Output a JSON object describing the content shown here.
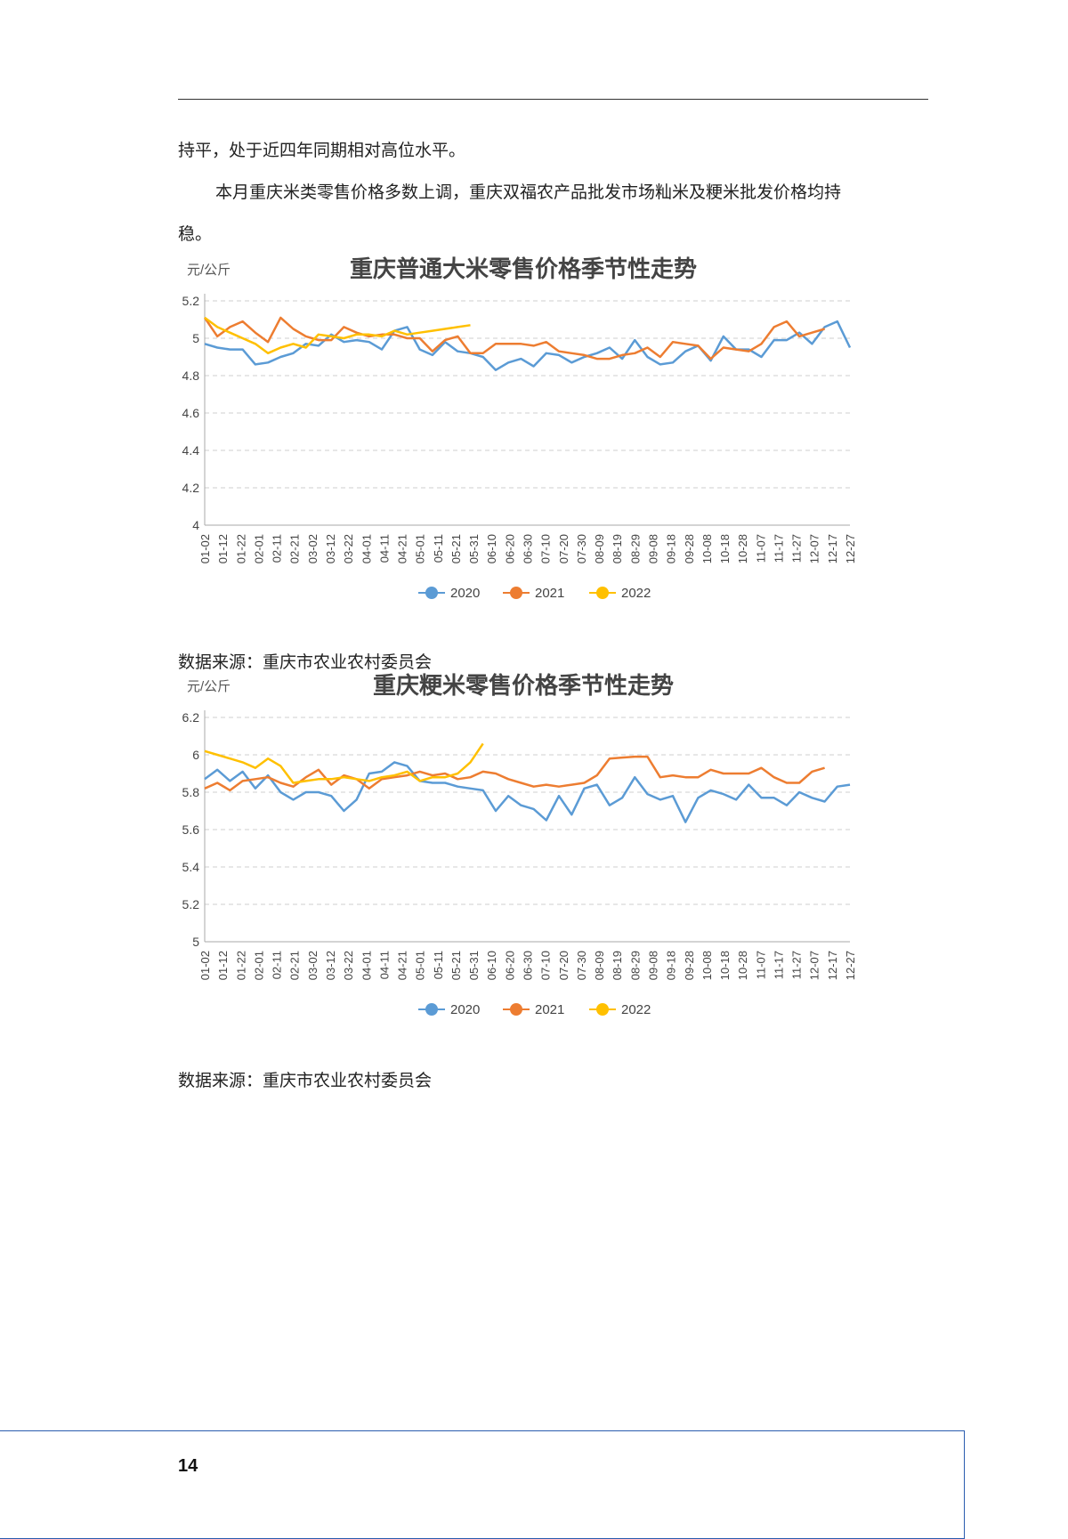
{
  "body": {
    "line1": "持平，处于近四年同期相对高位水平。",
    "line2": "本月重庆米类零售价格多数上调，重庆双福农产品批发市场籼米及粳米批发价格均持",
    "line3": "稳。"
  },
  "sources": [
    "数据来源：重庆市农业农村委员会",
    "数据来源：重庆市农业农村委员会"
  ],
  "page_number": "14",
  "colors": {
    "2020": "#5b9bd5",
    "2021": "#ed7d31",
    "2022": "#ffc000"
  },
  "chart_data": [
    {
      "type": "line",
      "title": "重庆普通大米零售价格季节性走势",
      "unit": "元/公斤",
      "ylim": [
        4,
        5.2
      ],
      "yticks": [
        "5.2",
        "5",
        "4.8",
        "4.6",
        "4.4",
        "4.2",
        "4"
      ],
      "grid": true,
      "legend": "bottom",
      "x_labels": [
        "01-02",
        "01-12",
        "01-22",
        "02-01",
        "02-11",
        "02-21",
        "03-02",
        "03-12",
        "03-22",
        "04-01",
        "04-11",
        "04-21",
        "05-01",
        "05-11",
        "05-21",
        "05-31",
        "06-10",
        "06-20",
        "06-30",
        "07-10",
        "07-20",
        "07-30",
        "08-09",
        "08-19",
        "08-29",
        "09-08",
        "09-18",
        "09-28",
        "10-08",
        "10-18",
        "10-28",
        "11-07",
        "11-17",
        "11-27",
        "12-07",
        "12-17",
        "12-27"
      ],
      "series": [
        {
          "name": "2020",
          "values": [
            4.97,
            4.95,
            4.94,
            4.94,
            4.86,
            4.87,
            4.9,
            4.92,
            4.97,
            4.96,
            5.02,
            4.98,
            4.99,
            4.98,
            4.94,
            5.04,
            5.06,
            4.94,
            4.91,
            4.98,
            4.93,
            4.92,
            4.9,
            4.83,
            4.87,
            4.89,
            4.85,
            4.92,
            4.91,
            4.87,
            4.9,
            4.92,
            4.95,
            4.89,
            4.99,
            4.9,
            4.86,
            4.87,
            4.93,
            4.96,
            4.88,
            5.01,
            4.94,
            4.94,
            4.9,
            4.99,
            4.99,
            5.03,
            4.97,
            5.06,
            5.09,
            4.95
          ]
        },
        {
          "name": "2021",
          "values": [
            5.11,
            5.01,
            5.06,
            5.09,
            5.03,
            4.98,
            5.11,
            5.05,
            5.01,
            4.99,
            4.99,
            5.06,
            5.03,
            5.01,
            5.02,
            5.02,
            5.0,
            5.0,
            4.93,
            4.99,
            5.01,
            4.92,
            4.92,
            4.97,
            4.97,
            4.97,
            4.96,
            4.98,
            4.93,
            4.92,
            4.91,
            4.89,
            4.89,
            4.91,
            4.92,
            4.95,
            4.9,
            4.98,
            4.97,
            4.96,
            4.89,
            4.95,
            4.94,
            4.93,
            4.97,
            5.06,
            5.09,
            5.01,
            5.03,
            5.05
          ]
        },
        {
          "name": "2022",
          "values": [
            5.11,
            5.06,
            5.03,
            5.0,
            4.97,
            4.92,
            4.95,
            4.97,
            4.95,
            5.02,
            5.01,
            5.0,
            5.02,
            5.02,
            5.01,
            5.04,
            5.02,
            5.03,
            5.04,
            5.05,
            5.06,
            5.07
          ]
        }
      ]
    },
    {
      "type": "line",
      "title": "重庆粳米零售价格季节性走势",
      "unit": "元/公斤",
      "ylim": [
        5,
        6.2
      ],
      "yticks": [
        "6.2",
        "6",
        "5.8",
        "5.6",
        "5.4",
        "5.2",
        "5"
      ],
      "grid": true,
      "legend": "bottom",
      "x_labels": [
        "01-02",
        "01-12",
        "01-22",
        "02-01",
        "02-11",
        "02-21",
        "03-02",
        "03-12",
        "03-22",
        "04-01",
        "04-11",
        "04-21",
        "05-01",
        "05-11",
        "05-21",
        "05-31",
        "06-10",
        "06-20",
        "06-30",
        "07-10",
        "07-20",
        "07-30",
        "08-09",
        "08-19",
        "08-29",
        "09-08",
        "09-18",
        "09-28",
        "10-08",
        "10-18",
        "10-28",
        "11-07",
        "11-17",
        "11-27",
        "12-07",
        "12-17",
        "12-27"
      ],
      "series": [
        {
          "name": "2020",
          "values": [
            5.87,
            5.92,
            5.86,
            5.91,
            5.82,
            5.89,
            5.8,
            5.76,
            5.8,
            5.8,
            5.78,
            5.7,
            5.76,
            5.9,
            5.91,
            5.96,
            5.94,
            5.86,
            5.85,
            5.85,
            5.83,
            5.82,
            5.81,
            5.7,
            5.78,
            5.73,
            5.71,
            5.65,
            5.78,
            5.68,
            5.82,
            5.84,
            5.73,
            5.77,
            5.88,
            5.79,
            5.76,
            5.78,
            5.64,
            5.77,
            5.81,
            5.79,
            5.76,
            5.84,
            5.77,
            5.77,
            5.73,
            5.8,
            5.77,
            5.75,
            5.83,
            5.84
          ]
        },
        {
          "name": "2021",
          "values": [
            5.82,
            5.85,
            5.81,
            5.86,
            5.87,
            5.88,
            5.85,
            5.83,
            5.88,
            5.92,
            5.84,
            5.89,
            5.87,
            5.82,
            5.87,
            5.88,
            5.89,
            5.91,
            5.89,
            5.9,
            5.87,
            5.88,
            5.91,
            5.9,
            5.87,
            5.85,
            5.83,
            5.84,
            5.83,
            5.84,
            5.85,
            5.89,
            5.98,
            5.985,
            5.99,
            5.99,
            5.88,
            5.89,
            5.88,
            5.88,
            5.92,
            5.9,
            5.9,
            5.9,
            5.93,
            5.88,
            5.85,
            5.85,
            5.91,
            5.93
          ]
        },
        {
          "name": "2022",
          "values": [
            6.02,
            6.0,
            5.98,
            5.96,
            5.93,
            5.98,
            5.94,
            5.85,
            5.86,
            5.87,
            5.87,
            5.88,
            5.87,
            5.86,
            5.88,
            5.89,
            5.91,
            5.86,
            5.88,
            5.88,
            5.9,
            5.96,
            6.06
          ]
        }
      ]
    }
  ]
}
